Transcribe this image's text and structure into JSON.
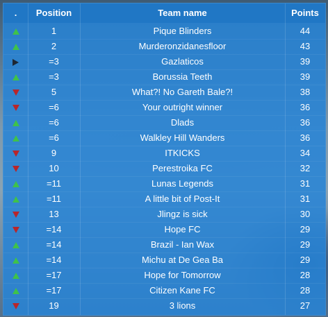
{
  "table": {
    "headers": {
      "movement": ".",
      "position": "Position",
      "team": "Team name",
      "points": "Points"
    },
    "rows": [
      {
        "movement": "up",
        "position": "1",
        "team": "Pique Blinders",
        "points": "44"
      },
      {
        "movement": "up",
        "position": "2",
        "team": "Murderonzidanesfloor",
        "points": "43"
      },
      {
        "movement": "same",
        "position": "=3",
        "team": "Gazlaticos",
        "points": "39"
      },
      {
        "movement": "up",
        "position": "=3",
        "team": "Borussia Teeth",
        "points": "39"
      },
      {
        "movement": "down",
        "position": "5",
        "team": "What?! No Gareth Bale?!",
        "points": "38"
      },
      {
        "movement": "down",
        "position": "=6",
        "team": "Your outright winner",
        "points": "36"
      },
      {
        "movement": "up",
        "position": "=6",
        "team": "Dlads",
        "points": "36"
      },
      {
        "movement": "up",
        "position": "=6",
        "team": "Walkley Hill Wanders",
        "points": "36"
      },
      {
        "movement": "down",
        "position": "9",
        "team": "ITKICKS",
        "points": "34"
      },
      {
        "movement": "down",
        "position": "10",
        "team": "Perestroika FC",
        "points": "32"
      },
      {
        "movement": "up",
        "position": "=11",
        "team": "Lunas Legends",
        "points": "31"
      },
      {
        "movement": "up",
        "position": "=11",
        "team": "A little bit of Post-It",
        "points": "31"
      },
      {
        "movement": "down",
        "position": "13",
        "team": "Jlingz is sick",
        "points": "30"
      },
      {
        "movement": "down",
        "position": "=14",
        "team": "Hope FC",
        "points": "29"
      },
      {
        "movement": "up",
        "position": "=14",
        "team": "Brazil - Ian Wax",
        "points": "29"
      },
      {
        "movement": "up",
        "position": "=14",
        "team": "Michu at De Gea Ba",
        "points": "29"
      },
      {
        "movement": "up",
        "position": "=17",
        "team": "Hope for Tomorrow",
        "points": "28"
      },
      {
        "movement": "up",
        "position": "=17",
        "team": "Citizen Kane FC",
        "points": "28"
      },
      {
        "movement": "down",
        "position": "19",
        "team": "3 lions",
        "points": "27"
      }
    ]
  },
  "colors": {
    "panel": "#2684d6",
    "up": "#3fc24a",
    "down": "#b8262b",
    "same": "#1d2733",
    "text": "#ffffff"
  }
}
